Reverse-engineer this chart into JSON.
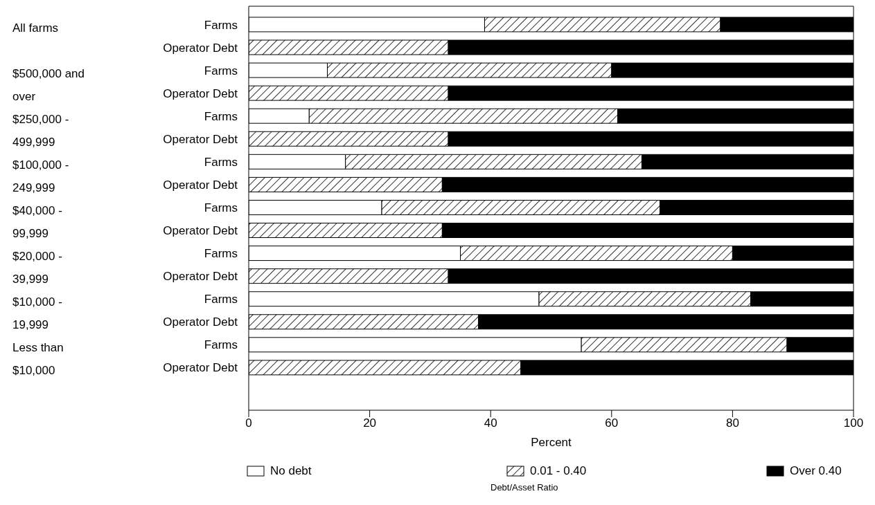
{
  "chart_data": {
    "type": "bar",
    "orientation": "horizontal",
    "stacked": true,
    "categories": [
      "Farms",
      "Operator Debt",
      "Farms",
      "Operator Debt",
      "Farms",
      "Operator Debt",
      "Farms",
      "Operator Debt",
      "Farms",
      "Operator Debt",
      "Farms",
      "Operator Debt",
      "Farms",
      "Operator Debt",
      "Farms",
      "Operator Debt"
    ],
    "annotations": [
      "All farms",
      "$500,000 and over",
      "$250,000 - 499,999",
      "$100,000 - 249,999",
      "$40,000 - 99,999",
      "$20,000 - 39,999",
      "$10,000 - 19,999",
      "Less than $10,000"
    ],
    "series": [
      {
        "name": "No debt",
        "color": "#ffffff",
        "values": [
          39,
          0,
          13,
          0,
          10,
          0,
          16,
          0,
          22,
          0,
          35,
          0,
          48,
          0,
          55,
          0
        ]
      },
      {
        "name": "0.01 - 0.40",
        "color": "#000000",
        "values": [
          39,
          33,
          47,
          33,
          51,
          33,
          49,
          32,
          46,
          32,
          45,
          33,
          35,
          38,
          34,
          45
        ]
      },
      {
        "name": "Over 0.40",
        "color": "#000000",
        "values": [
          22,
          67,
          40,
          67,
          39,
          67,
          35,
          68,
          32,
          68,
          20,
          67,
          17,
          62,
          11,
          55
        ]
      }
    ],
    "xlabel": "Percent",
    "xlim": [
      0,
      100
    ],
    "xticks": [
      0,
      20,
      40,
      60,
      80,
      100
    ],
    "legend": "bottom",
    "legend_title": "Debt/Asset Ratio",
    "grid": false
  }
}
